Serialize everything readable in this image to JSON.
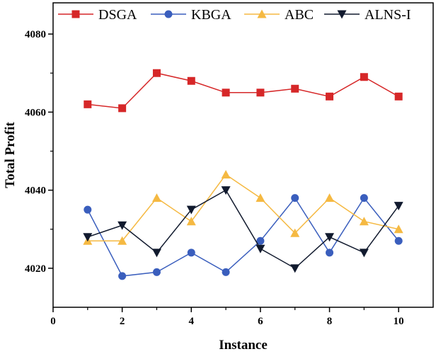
{
  "chart_data": {
    "type": "line",
    "title": "",
    "xlabel": "Instance",
    "ylabel": "Total Profit",
    "xlim": [
      0,
      11
    ],
    "ylim": [
      4010,
      4088
    ],
    "x_ticks": [
      0,
      2,
      4,
      6,
      8,
      10
    ],
    "y_ticks": [
      4020,
      4040,
      4060,
      4080
    ],
    "x": [
      1,
      2,
      3,
      4,
      5,
      6,
      7,
      8,
      9,
      10
    ],
    "legend_position": "top",
    "grid": false,
    "series": [
      {
        "name": "DSGA",
        "color": "#d62728",
        "marker": "square",
        "values": [
          4062,
          4061,
          4070,
          4068,
          4065,
          4065,
          4066,
          4064,
          4069,
          4064
        ]
      },
      {
        "name": "KBGA",
        "color": "#3a5ebd",
        "marker": "circle",
        "values": [
          4035,
          4018,
          4019,
          4024,
          4019,
          4027,
          4038,
          4024,
          4038,
          4027
        ]
      },
      {
        "name": "ABC",
        "color": "#f5b942",
        "marker": "triangle-up",
        "values": [
          4027,
          4027,
          4038,
          4032,
          4044,
          4038,
          4029,
          4038,
          4032,
          4030
        ]
      },
      {
        "name": "ALNS-I",
        "color": "#111a2e",
        "marker": "triangle-down",
        "values": [
          4028,
          4031,
          4024,
          4035,
          4040,
          4025,
          4020,
          4028,
          4024,
          4036
        ]
      }
    ]
  }
}
